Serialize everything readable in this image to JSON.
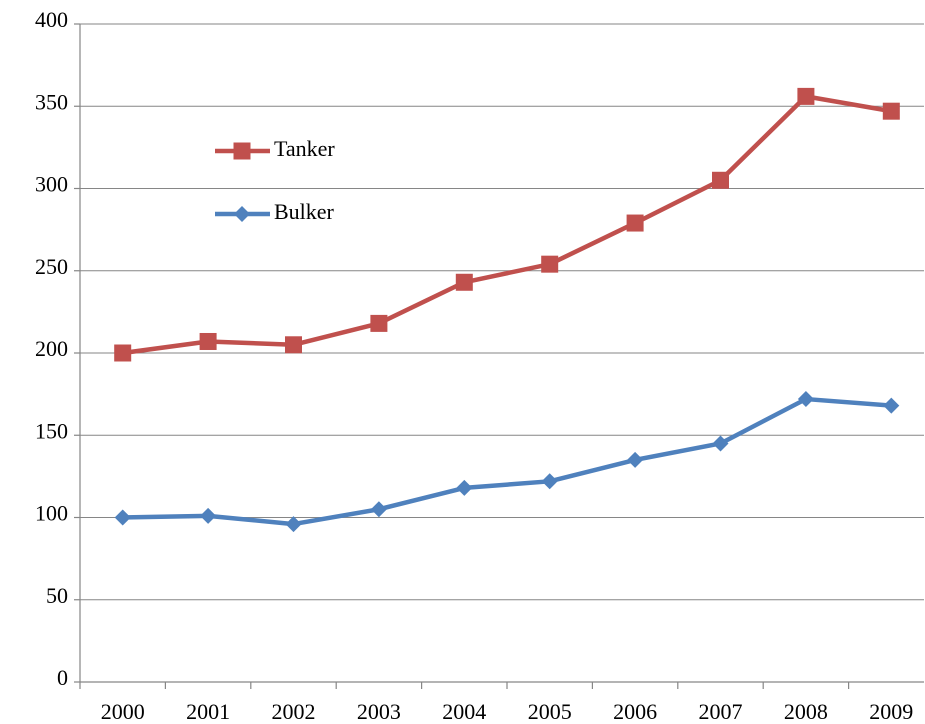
{
  "chart_data": {
    "type": "line",
    "categories": [
      "2000",
      "2001",
      "2002",
      "2003",
      "2004",
      "2005",
      "2006",
      "2007",
      "2008",
      "2009"
    ],
    "series": [
      {
        "name": "Tanker",
        "color": "#c0504d",
        "marker": "square",
        "values": [
          200,
          207,
          205,
          218,
          243,
          254,
          279,
          305,
          356,
          347
        ]
      },
      {
        "name": "Bulker",
        "color": "#4f81bd",
        "marker": "diamond",
        "values": [
          100,
          101,
          96,
          105,
          118,
          122,
          135,
          145,
          172,
          168
        ]
      }
    ],
    "ylim": [
      0,
      400
    ],
    "yticks": [
      0,
      50,
      100,
      150,
      200,
      250,
      300,
      350,
      400
    ],
    "grid": true,
    "legend": "upper left"
  }
}
